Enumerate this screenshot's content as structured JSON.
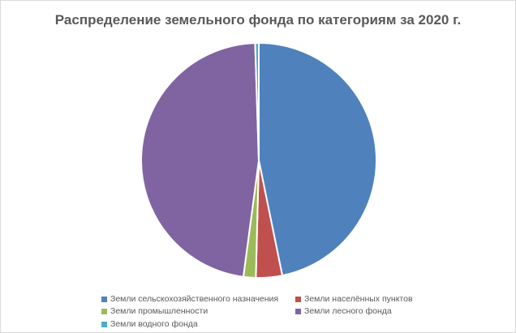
{
  "chart_data": {
    "type": "pie",
    "title": "Распределение земельного фонда по категориям за 2020 г.",
    "categories": [
      "Земли сельскохозяйственного назначения",
      "Земли населённых пунктов",
      "Земли промышленности",
      "Земли лесного фонда",
      "Земли водного фонда"
    ],
    "values": [
      46.8,
      3.6,
      1.7,
      47.4,
      0.5
    ],
    "colors": [
      "#4f81bd",
      "#c0504d",
      "#9bbb59",
      "#8064a2",
      "#4bacc6"
    ],
    "legend_position": "bottom"
  }
}
